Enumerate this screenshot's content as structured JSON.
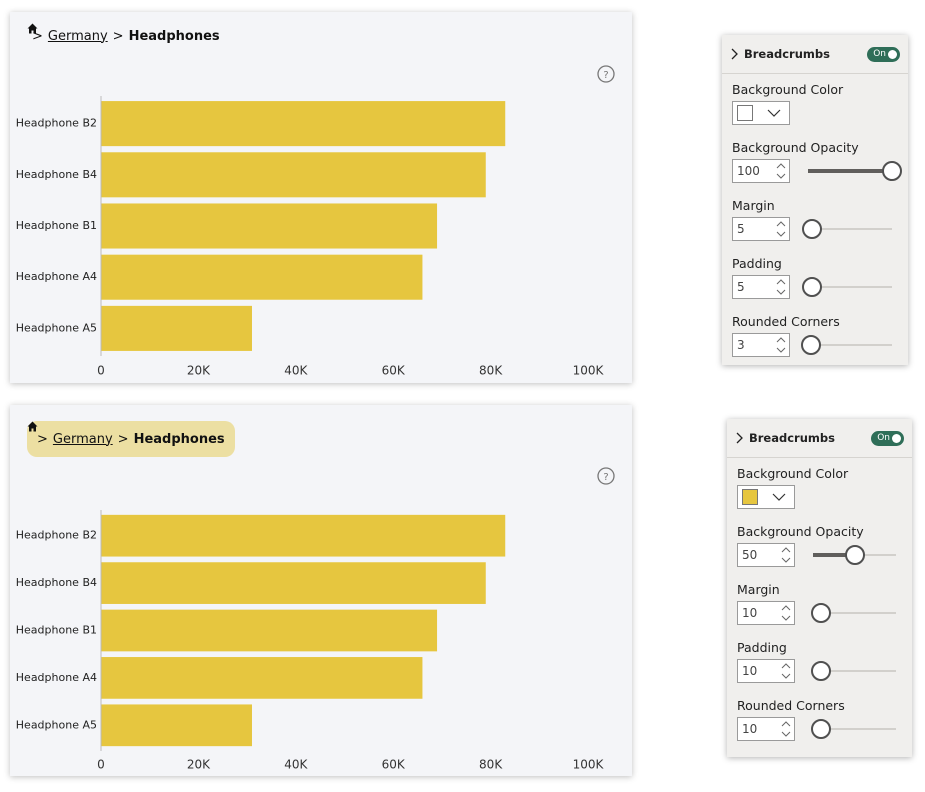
{
  "chart_data": [
    {
      "type": "bar",
      "orientation": "horizontal",
      "breadcrumb": {
        "separator": ">",
        "items": [
          "Germany",
          "Headphones"
        ]
      },
      "categories": [
        "Headphone B2",
        "Headphone B4",
        "Headphone B1",
        "Headphone A4",
        "Headphone A5"
      ],
      "values": [
        83000,
        79000,
        69000,
        66000,
        31000
      ],
      "color": "#e6c63f",
      "xlim": [
        0,
        108000
      ],
      "xticks": [
        0,
        {
          "value": 20000,
          "label": "20K"
        },
        {
          "value": 40000,
          "label": "40K"
        },
        {
          "value": 60000,
          "label": "60K"
        },
        {
          "value": 80000,
          "label": "80K"
        },
        {
          "value": 100000,
          "label": "100K"
        }
      ]
    },
    {
      "type": "bar",
      "orientation": "horizontal",
      "breadcrumb": {
        "separator": ">",
        "items": [
          "Germany",
          "Headphones"
        ],
        "fill": "#ecdfa2"
      },
      "categories": [
        "Headphone B2",
        "Headphone B4",
        "Headphone B1",
        "Headphone A4",
        "Headphone A5"
      ],
      "values": [
        83000,
        79000,
        69000,
        66000,
        31000
      ],
      "color": "#e6c63f",
      "xlim": [
        0,
        108000
      ],
      "xticks": [
        0,
        {
          "value": 20000,
          "label": "20K"
        },
        {
          "value": 40000,
          "label": "40K"
        },
        {
          "value": 60000,
          "label": "60K"
        },
        {
          "value": 80000,
          "label": "80K"
        },
        {
          "value": 100000,
          "label": "100K"
        }
      ]
    }
  ],
  "panels": [
    {
      "title": "Breadcrumbs",
      "toggle": "On",
      "fields": [
        {
          "label": "Background Color",
          "color": "#ffffff"
        },
        {
          "label": "Background Opacity",
          "value": 100
        },
        {
          "label": "Margin",
          "value": 5
        },
        {
          "label": "Padding",
          "value": 5
        },
        {
          "label": "Rounded Corners",
          "value": 3
        }
      ]
    },
    {
      "title": "Breadcrumbs",
      "toggle": "On",
      "fields": [
        {
          "label": "Background Color",
          "color": "#e6c63f"
        },
        {
          "label": "Background Opacity",
          "value": 50
        },
        {
          "label": "Margin",
          "value": 10
        },
        {
          "label": "Padding",
          "value": 10
        },
        {
          "label": "Rounded Corners",
          "value": 10
        }
      ]
    }
  ]
}
